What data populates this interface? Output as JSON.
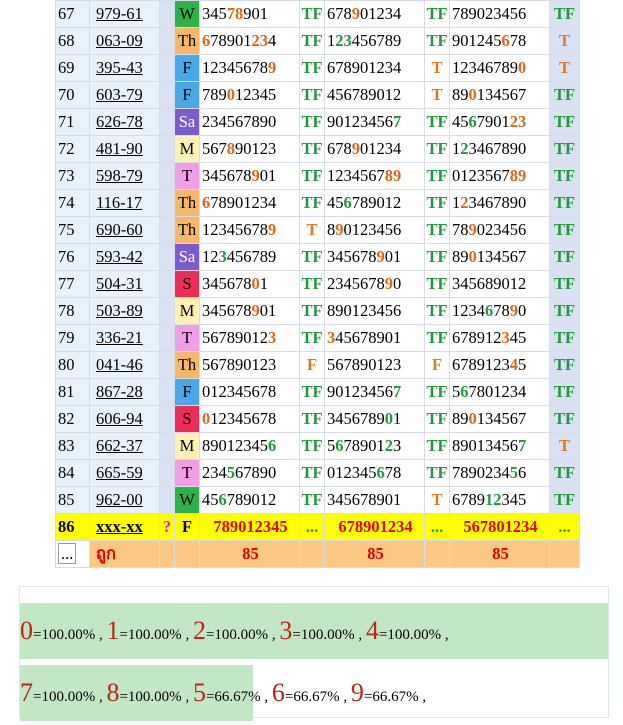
{
  "rows": [
    {
      "no": "67",
      "code": "979-61",
      "day": "W",
      "d1": [
        [
          "n",
          "345"
        ],
        [
          "o",
          "78"
        ],
        [
          "n",
          "901"
        ]
      ],
      "t1": "TF",
      "d2": [
        [
          "n",
          "678"
        ],
        [
          "o",
          "9"
        ],
        [
          "n",
          "01234"
        ]
      ],
      "t2": "TF",
      "d3": [
        [
          "n",
          "789023456"
        ]
      ],
      "t3": "TF"
    },
    {
      "no": "68",
      "code": "063-09",
      "day": "Th",
      "d1": [
        [
          "o",
          "6"
        ],
        [
          "n",
          "78901"
        ],
        [
          "o",
          "23"
        ],
        [
          "n",
          "4"
        ]
      ],
      "t1": "TF",
      "d2": [
        [
          "n",
          "1"
        ],
        [
          "g",
          "23"
        ],
        [
          "n",
          "456789"
        ]
      ],
      "t2": "TF",
      "d3": [
        [
          "n",
          "901245"
        ],
        [
          "o",
          "6"
        ],
        [
          "n",
          "78"
        ]
      ],
      "t3": "T"
    },
    {
      "no": "69",
      "code": "395-43",
      "day": "F",
      "d1": [
        [
          "n",
          "12345678"
        ],
        [
          "o",
          "9"
        ]
      ],
      "t1": "TF",
      "d2": [
        [
          "n",
          "678901234"
        ]
      ],
      "t2": "T",
      "d3": [
        [
          "n",
          "12346789"
        ],
        [
          "o",
          "0"
        ]
      ],
      "t3": "T"
    },
    {
      "no": "70",
      "code": "603-79",
      "day": "F",
      "d1": [
        [
          "n",
          "789"
        ],
        [
          "o",
          "0"
        ],
        [
          "n",
          "12345"
        ]
      ],
      "t1": "TF",
      "d2": [
        [
          "n",
          "456789012"
        ]
      ],
      "t2": "T",
      "d3": [
        [
          "n",
          "89"
        ],
        [
          "o",
          "0"
        ],
        [
          "n",
          "134567"
        ]
      ],
      "t3": "TF"
    },
    {
      "no": "71",
      "code": "626-78",
      "day": "Sa",
      "d1": [
        [
          "n",
          "234567890"
        ]
      ],
      "t1": "TF",
      "d2": [
        [
          "n",
          "90123456"
        ],
        [
          "g",
          "7"
        ]
      ],
      "t2": "TF",
      "d3": [
        [
          "n",
          "45"
        ],
        [
          "g",
          "6"
        ],
        [
          "n",
          "7901"
        ],
        [
          "o",
          "23"
        ]
      ],
      "t3": "TF"
    },
    {
      "no": "72",
      "code": "481-90",
      "day": "M",
      "d1": [
        [
          "n",
          "567"
        ],
        [
          "o",
          "8"
        ],
        [
          "n",
          "90123"
        ]
      ],
      "t1": "TF",
      "d2": [
        [
          "n",
          "678"
        ],
        [
          "o",
          "9"
        ],
        [
          "n",
          "01234"
        ]
      ],
      "t2": "TF",
      "d3": [
        [
          "n",
          "1"
        ],
        [
          "g",
          "2"
        ],
        [
          "n",
          "3467890"
        ]
      ],
      "t3": "TF"
    },
    {
      "no": "73",
      "code": "598-79",
      "day": "T",
      "d1": [
        [
          "n",
          "345678"
        ],
        [
          "o",
          "9"
        ],
        [
          "n",
          "01"
        ]
      ],
      "t1": "TF",
      "d2": [
        [
          "n",
          "1234567"
        ],
        [
          "o",
          "89"
        ]
      ],
      "t2": "TF",
      "d3": [
        [
          "n",
          "0123567"
        ],
        [
          "o",
          "89"
        ]
      ],
      "t3": "TF"
    },
    {
      "no": "74",
      "code": "116-17",
      "day": "Th",
      "d1": [
        [
          "o",
          "6"
        ],
        [
          "n",
          "78901234"
        ]
      ],
      "t1": "TF",
      "d2": [
        [
          "n",
          "45"
        ],
        [
          "g",
          "6"
        ],
        [
          "n",
          "789012"
        ]
      ],
      "t2": "TF",
      "d3": [
        [
          "n",
          "1"
        ],
        [
          "o",
          "2"
        ],
        [
          "n",
          "3467890"
        ]
      ],
      "t3": "TF"
    },
    {
      "no": "75",
      "code": "690-60",
      "day": "Th",
      "d1": [
        [
          "n",
          "12345678"
        ],
        [
          "o",
          "9"
        ]
      ],
      "t1": "T",
      "d2": [
        [
          "n",
          "8"
        ],
        [
          "o",
          "9"
        ],
        [
          "n",
          "0123456"
        ]
      ],
      "t2": "TF",
      "d3": [
        [
          "n",
          "78"
        ],
        [
          "o",
          "9"
        ],
        [
          "n",
          "023456"
        ]
      ],
      "t3": "TF"
    },
    {
      "no": "76",
      "code": "593-42",
      "day": "Sa",
      "d1": [
        [
          "n",
          "12"
        ],
        [
          "g",
          "3"
        ],
        [
          "n",
          "456789"
        ]
      ],
      "t1": "TF",
      "d2": [
        [
          "n",
          "345678"
        ],
        [
          "o",
          "9"
        ],
        [
          "n",
          "01"
        ]
      ],
      "t2": "TF",
      "d3": [
        [
          "n",
          "89"
        ],
        [
          "o",
          "0"
        ],
        [
          "n",
          "134567"
        ]
      ],
      "t3": "TF"
    },
    {
      "no": "77",
      "code": "504-31",
      "day": "S",
      "d1": [
        [
          "n",
          "345678"
        ],
        [
          "o",
          "0"
        ],
        [
          "n",
          "1"
        ]
      ],
      "t1": "TF",
      "d2": [
        [
          "n",
          "2345678"
        ],
        [
          "o",
          "9"
        ],
        [
          "n",
          "0"
        ]
      ],
      "t2": "TF",
      "d3": [
        [
          "n",
          "345689012"
        ]
      ],
      "t3": "TF"
    },
    {
      "no": "78",
      "code": "503-89",
      "day": "M",
      "d1": [
        [
          "n",
          "345678"
        ],
        [
          "o",
          "9"
        ],
        [
          "n",
          "01"
        ]
      ],
      "t1": "TF",
      "d2": [
        [
          "n",
          "890123456"
        ]
      ],
      "t2": "TF",
      "d3": [
        [
          "n",
          "1234"
        ],
        [
          "g",
          "6"
        ],
        [
          "n",
          "78"
        ],
        [
          "o",
          "9"
        ],
        [
          "n",
          "0"
        ]
      ],
      "t3": "TF"
    },
    {
      "no": "79",
      "code": "336-21",
      "day": "T",
      "d1": [
        [
          "n",
          "56789012"
        ],
        [
          "o",
          "3"
        ]
      ],
      "t1": "TF",
      "d2": [
        [
          "o",
          "3"
        ],
        [
          "n",
          "45678901"
        ]
      ],
      "t2": "TF",
      "d3": [
        [
          "n",
          "678912"
        ],
        [
          "o",
          "3"
        ],
        [
          "n",
          "45"
        ]
      ],
      "t3": "TF"
    },
    {
      "no": "80",
      "code": "041-46",
      "day": "Th",
      "d1": [
        [
          "n",
          "567890123"
        ]
      ],
      "t1": "F",
      "d2": [
        [
          "n",
          "567890123"
        ]
      ],
      "t2": "F",
      "d3": [
        [
          "n",
          "6789123"
        ],
        [
          "o",
          "4"
        ],
        [
          "n",
          "5"
        ]
      ],
      "t3": "TF"
    },
    {
      "no": "81",
      "code": "867-28",
      "day": "F",
      "d1": [
        [
          "n",
          "012345678"
        ]
      ],
      "t1": "TF",
      "d2": [
        [
          "n",
          "90123456"
        ],
        [
          "g",
          "7"
        ]
      ],
      "t2": "TF",
      "d3": [
        [
          "n",
          "5"
        ],
        [
          "g",
          "6"
        ],
        [
          "n",
          "7801234"
        ]
      ],
      "t3": "TF"
    },
    {
      "no": "82",
      "code": "606-94",
      "day": "S",
      "d1": [
        [
          "o",
          "0"
        ],
        [
          "n",
          "12345678"
        ]
      ],
      "t1": "TF",
      "d2": [
        [
          "n",
          "3456789"
        ],
        [
          "g",
          "0"
        ],
        [
          "n",
          "1"
        ]
      ],
      "t2": "TF",
      "d3": [
        [
          "n",
          "89"
        ],
        [
          "o",
          "0"
        ],
        [
          "n",
          "134567"
        ]
      ],
      "t3": "TF"
    },
    {
      "no": "83",
      "code": "662-37",
      "day": "M",
      "d1": [
        [
          "n",
          "89012345"
        ],
        [
          "g",
          "6"
        ]
      ],
      "t1": "TF",
      "d2": [
        [
          "n",
          "5"
        ],
        [
          "g",
          "6"
        ],
        [
          "n",
          "78901"
        ],
        [
          "g",
          "2"
        ],
        [
          "n",
          "3"
        ]
      ],
      "t2": "TF",
      "d3": [
        [
          "n",
          "89013456"
        ],
        [
          "g",
          "7"
        ]
      ],
      "t3": "T"
    },
    {
      "no": "84",
      "code": "665-59",
      "day": "T",
      "d1": [
        [
          "n",
          "234"
        ],
        [
          "g",
          "5"
        ],
        [
          "n",
          "67890"
        ]
      ],
      "t1": "TF",
      "d2": [
        [
          "n",
          "012345"
        ],
        [
          "g",
          "6"
        ],
        [
          "n",
          "78"
        ]
      ],
      "t2": "TF",
      "d3": [
        [
          "n",
          "7890234"
        ],
        [
          "g",
          "5"
        ],
        [
          "n",
          "6"
        ]
      ],
      "t3": "TF"
    },
    {
      "no": "85",
      "code": "962-00",
      "day": "W",
      "d1": [
        [
          "n",
          "45"
        ],
        [
          "g",
          "6"
        ],
        [
          "n",
          "789012"
        ]
      ],
      "t1": "TF",
      "d2": [
        [
          "n",
          "345678901"
        ]
      ],
      "t2": "T",
      "d3": [
        [
          "n",
          "6789"
        ],
        [
          "g",
          "12"
        ],
        [
          "n",
          "345"
        ]
      ],
      "t3": "TF"
    }
  ],
  "prediction": {
    "no": "86",
    "code": "xxx-xx",
    "q": "?",
    "day": "F",
    "d1": "789012345",
    "t1": "...",
    "d2": "678901234",
    "t2": "...",
    "d3": "567801234",
    "t3": "..."
  },
  "totals": {
    "no": "...",
    "label": "ถูก",
    "v1": "85",
    "v2": "85",
    "v3": "85"
  },
  "stats_row1": [
    {
      "digit": "0",
      "value": "=100.00%",
      "sep": ","
    },
    {
      "digit": "1",
      "value": "=100.00%",
      "sep": ","
    },
    {
      "digit": "2",
      "value": "=100.00%",
      "sep": ","
    },
    {
      "digit": "3",
      "value": "=100.00%",
      "sep": ","
    },
    {
      "digit": "4",
      "value": "=100.00%",
      "sep": ","
    }
  ],
  "stats_row2": [
    {
      "digit": "7",
      "value": "=100.00%",
      "sep": ","
    },
    {
      "digit": "8",
      "value": "=100.00%",
      "sep": ","
    },
    {
      "digit": "5",
      "value": "=66.67%",
      "sep": ","
    },
    {
      "digit": "6",
      "value": "=66.67%",
      "sep": ","
    },
    {
      "digit": "9",
      "value": "=66.67%",
      "sep": ","
    }
  ],
  "colors": {
    "correct": "#1f9a3a",
    "hit": "#e0661a",
    "prediction_bg": "#ffff00",
    "totals_bg": "#fac882",
    "stats_digit": "#c0231c"
  }
}
